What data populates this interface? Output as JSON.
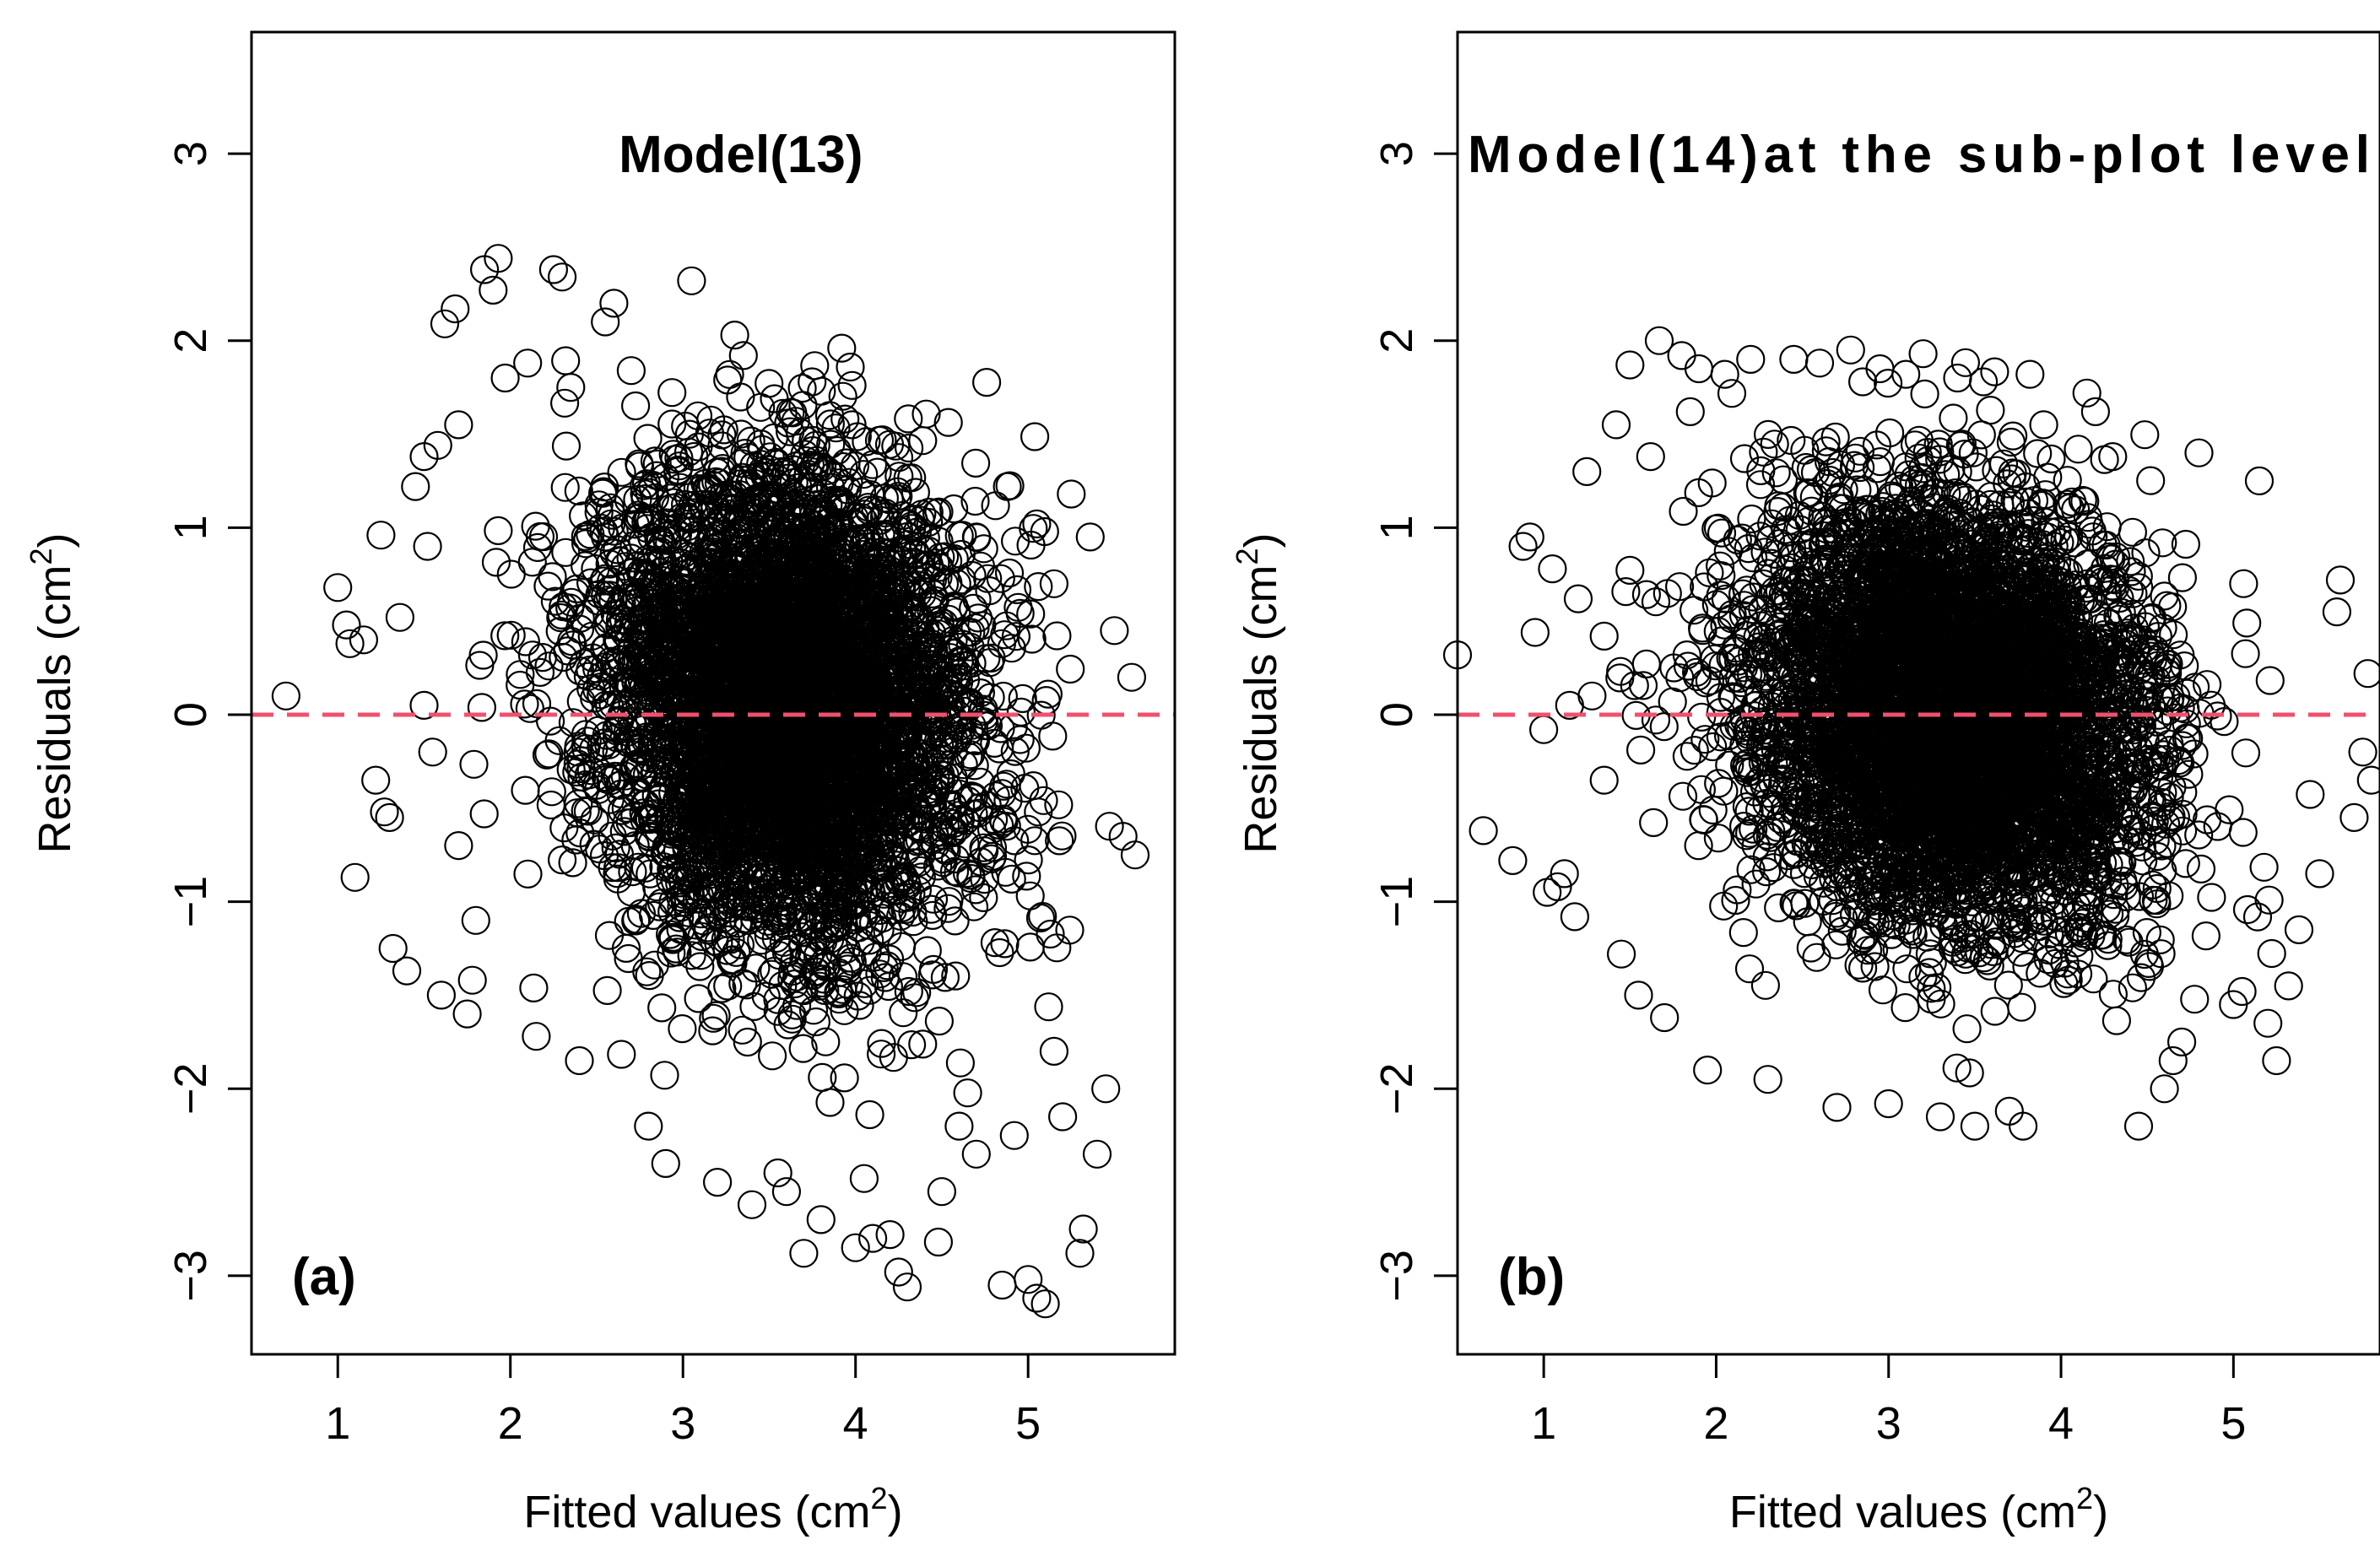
{
  "chart_data": [
    {
      "id": "a",
      "type": "scatter",
      "title": "Model(13)",
      "panel_label": "(a)",
      "xlabel": "Fitted values (cm",
      "xlabel_sup": "2",
      "xlabel_end": ")",
      "ylabel": "Residuals (cm",
      "ylabel_sup": "2",
      "ylabel_end": ")",
      "xlim": [
        0.5,
        5.85
      ],
      "ylim": [
        -3.42,
        3.65
      ],
      "xticks": [
        1,
        2,
        3,
        4,
        5
      ],
      "yticks": [
        -3,
        -2,
        -1,
        0,
        1,
        2,
        3
      ],
      "xtick_labels": [
        "1",
        "2",
        "3",
        "4",
        "5"
      ],
      "ytick_labels": [
        "−3",
        "−2",
        "−1",
        "0",
        "1",
        "2",
        "3"
      ],
      "reference_line_y": 0,
      "reference_line_color": "#f0506e",
      "marker": "open-circle",
      "dense_cloud": {
        "x_center": 3.6,
        "y_center": 0.05,
        "x_spread": 1.0,
        "y_spread": 0.85,
        "n": 5200,
        "seed": 13
      },
      "points": [
        [
          0.7,
          0.1
        ],
        [
          1.0,
          0.68
        ],
        [
          1.05,
          0.48
        ],
        [
          1.07,
          0.38
        ],
        [
          1.1,
          -0.87
        ],
        [
          1.15,
          0.4
        ],
        [
          1.22,
          -0.35
        ],
        [
          1.25,
          0.96
        ],
        [
          1.27,
          -0.52
        ],
        [
          1.3,
          -0.55
        ],
        [
          1.32,
          -1.25
        ],
        [
          1.36,
          0.52
        ],
        [
          1.4,
          -1.37
        ],
        [
          1.45,
          1.22
        ],
        [
          1.5,
          1.38
        ],
        [
          1.52,
          0.9
        ],
        [
          1.58,
          1.44
        ],
        [
          1.6,
          -1.5
        ],
        [
          1.62,
          2.09
        ],
        [
          1.68,
          2.17
        ],
        [
          1.7,
          1.55
        ],
        [
          1.75,
          -1.6
        ],
        [
          1.78,
          -1.42
        ],
        [
          1.85,
          2.38
        ],
        [
          1.9,
          2.27
        ],
        [
          1.93,
          2.44
        ],
        [
          1.97,
          1.8
        ],
        [
          2.1,
          1.88
        ],
        [
          2.15,
          -1.72
        ],
        [
          2.25,
          2.38
        ],
        [
          2.3,
          2.34
        ],
        [
          2.35,
          1.75
        ],
        [
          2.4,
          -1.85
        ],
        [
          2.55,
          2.1
        ],
        [
          2.6,
          2.2
        ],
        [
          2.7,
          1.84
        ],
        [
          2.8,
          -2.2
        ],
        [
          2.9,
          -2.4
        ],
        [
          3.05,
          2.32
        ],
        [
          3.2,
          -2.5
        ],
        [
          3.3,
          2.03
        ],
        [
          3.35,
          1.92
        ],
        [
          3.4,
          -2.62
        ],
        [
          3.55,
          -2.45
        ],
        [
          3.6,
          -2.55
        ],
        [
          3.7,
          -2.88
        ],
        [
          3.8,
          -2.7
        ],
        [
          3.85,
          1.6
        ],
        [
          3.92,
          1.96
        ],
        [
          3.98,
          1.55
        ],
        [
          4.0,
          -2.85
        ],
        [
          4.05,
          -2.48
        ],
        [
          4.1,
          -2.8
        ],
        [
          4.2,
          -2.78
        ],
        [
          4.25,
          -2.98
        ],
        [
          4.3,
          -3.06
        ],
        [
          4.48,
          -2.82
        ],
        [
          4.5,
          -2.55
        ],
        [
          4.6,
          -2.2
        ],
        [
          4.7,
          -2.35
        ],
        [
          4.85,
          -3.05
        ],
        [
          4.92,
          -2.25
        ],
        [
          5.0,
          -3.02
        ],
        [
          5.05,
          -3.12
        ],
        [
          5.1,
          -3.15
        ],
        [
          5.15,
          -1.8
        ],
        [
          5.2,
          -2.15
        ],
        [
          5.25,
          1.18
        ],
        [
          5.3,
          -2.88
        ],
        [
          5.32,
          -2.75
        ],
        [
          5.36,
          0.95
        ],
        [
          5.4,
          -2.35
        ],
        [
          5.45,
          -2.0
        ],
        [
          5.5,
          0.45
        ],
        [
          5.55,
          -0.65
        ],
        [
          5.6,
          0.2
        ],
        [
          5.62,
          -0.75
        ],
        [
          5.05,
          1.02
        ],
        [
          5.15,
          0.7
        ],
        [
          4.88,
          1.22
        ],
        [
          1.55,
          -0.2
        ],
        [
          1.5,
          0.05
        ],
        [
          1.7,
          -0.7
        ],
        [
          1.8,
          -1.1
        ]
      ]
    },
    {
      "id": "b",
      "type": "scatter",
      "title": "Model(14)at the sub-plot level",
      "panel_label": "(b)",
      "xlabel": "Fitted values (cm",
      "xlabel_sup": "2",
      "xlabel_end": ")",
      "ylabel": "Residuals (cm",
      "ylabel_sup": "2",
      "ylabel_end": ")",
      "xlim": [
        0.5,
        5.85
      ],
      "ylim": [
        -3.42,
        3.65
      ],
      "xticks": [
        1,
        2,
        3,
        4,
        5
      ],
      "yticks": [
        -3,
        -2,
        -1,
        0,
        1,
        2,
        3
      ],
      "xtick_labels": [
        "1",
        "2",
        "3",
        "4",
        "5"
      ],
      "ytick_labels": [
        "−3",
        "−2",
        "−1",
        "0",
        "1",
        "2",
        "3"
      ],
      "reference_line_y": 0,
      "reference_line_color": "#f0506e",
      "marker": "open-circle",
      "dense_cloud": {
        "x_center": 3.35,
        "y_center": 0.0,
        "x_spread": 1.05,
        "y_spread": 0.75,
        "n": 5200,
        "seed": 14
      },
      "points": [
        [
          0.5,
          0.32
        ],
        [
          0.65,
          -0.62
        ],
        [
          0.82,
          -0.78
        ],
        [
          0.88,
          0.9
        ],
        [
          0.92,
          0.95
        ],
        [
          0.95,
          0.44
        ],
        [
          1.0,
          -0.08
        ],
        [
          1.02,
          -0.95
        ],
        [
          1.05,
          0.78
        ],
        [
          1.08,
          -0.92
        ],
        [
          1.12,
          -0.85
        ],
        [
          1.18,
          -1.08
        ],
        [
          1.2,
          0.62
        ],
        [
          1.25,
          1.3
        ],
        [
          1.28,
          0.1
        ],
        [
          1.35,
          0.42
        ],
        [
          1.42,
          1.55
        ],
        [
          1.45,
          -1.28
        ],
        [
          1.5,
          1.87
        ],
        [
          1.55,
          -1.5
        ],
        [
          1.62,
          1.38
        ],
        [
          1.67,
          2.0
        ],
        [
          1.7,
          -1.62
        ],
        [
          1.8,
          1.92
        ],
        [
          1.85,
          1.62
        ],
        [
          1.9,
          1.85
        ],
        [
          1.95,
          -1.9
        ],
        [
          2.05,
          1.82
        ],
        [
          2.2,
          1.9
        ],
        [
          2.3,
          -1.95
        ],
        [
          2.45,
          1.9
        ],
        [
          2.6,
          1.88
        ],
        [
          2.7,
          -2.1
        ],
        [
          2.78,
          1.95
        ],
        [
          2.85,
          1.78
        ],
        [
          2.95,
          1.85
        ],
        [
          3.0,
          -2.08
        ],
        [
          3.1,
          1.82
        ],
        [
          3.2,
          1.93
        ],
        [
          3.3,
          -2.15
        ],
        [
          3.4,
          1.8
        ],
        [
          3.5,
          -2.2
        ],
        [
          3.55,
          1.78
        ],
        [
          3.7,
          -2.12
        ],
        [
          3.78,
          -2.2
        ],
        [
          3.82,
          1.82
        ],
        [
          3.9,
          1.55
        ],
        [
          4.1,
          1.42
        ],
        [
          4.15,
          1.72
        ],
        [
          4.2,
          1.62
        ],
        [
          4.3,
          1.38
        ],
        [
          4.45,
          -2.2
        ],
        [
          4.6,
          -2.0
        ],
        [
          4.65,
          -1.85
        ],
        [
          4.7,
          -1.75
        ],
        [
          4.8,
          1.4
        ],
        [
          5.0,
          -1.55
        ],
        [
          5.05,
          -1.48
        ],
        [
          5.15,
          1.25
        ],
        [
          5.2,
          -1.65
        ],
        [
          5.25,
          -1.85
        ],
        [
          5.32,
          -1.45
        ],
        [
          5.38,
          -1.15
        ],
        [
          5.5,
          -0.85
        ],
        [
          5.62,
          0.72
        ],
        [
          5.7,
          -0.55
        ],
        [
          5.78,
          0.22
        ],
        [
          5.8,
          -0.35
        ],
        [
          5.75,
          -0.2
        ],
        [
          5.6,
          0.55
        ],
        [
          1.35,
          -0.35
        ],
        [
          1.15,
          0.05
        ]
      ]
    }
  ]
}
